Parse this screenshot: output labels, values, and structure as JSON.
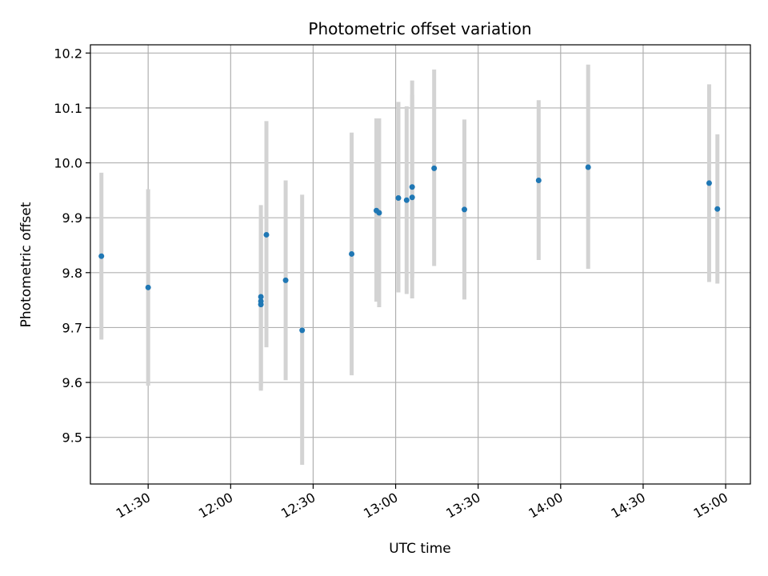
{
  "chart_data": {
    "type": "scatter",
    "title": "Photometric offset variation",
    "xlabel": "UTC time",
    "ylabel": "Photometric offset",
    "x_axis_type": "time",
    "xlim": [
      "11:09",
      "15:09"
    ],
    "ylim": [
      9.415,
      10.215
    ],
    "x_ticks": [
      "11:30",
      "12:00",
      "12:30",
      "13:00",
      "13:30",
      "14:00",
      "14:30",
      "15:00"
    ],
    "y_ticks": [
      9.5,
      9.6,
      9.7,
      9.8,
      9.9,
      10.0,
      10.1,
      10.2
    ],
    "y_tick_labels": [
      "9.5",
      "9.6",
      "9.7",
      "9.8",
      "9.9",
      "10.0",
      "10.1",
      "10.2"
    ],
    "grid": true,
    "errorbar_color": "#d3d3d3",
    "marker_color": "#1f77b4",
    "points": [
      {
        "x": "11:13",
        "y": 9.83,
        "ylow": 9.678,
        "yhigh": 9.982
      },
      {
        "x": "11:30",
        "y": 9.773,
        "ylow": 9.594,
        "yhigh": 9.952
      },
      {
        "x": "12:11",
        "y": 9.756,
        "ylow": 9.585,
        "yhigh": 9.923
      },
      {
        "x": "12:11",
        "y": 9.748,
        "ylow": 9.592,
        "yhigh": 9.9
      },
      {
        "x": "12:11",
        "y": 9.742,
        "ylow": 9.587,
        "yhigh": 9.897
      },
      {
        "x": "12:13",
        "y": 9.869,
        "ylow": 9.664,
        "yhigh": 10.076
      },
      {
        "x": "12:20",
        "y": 9.786,
        "ylow": 9.604,
        "yhigh": 9.968
      },
      {
        "x": "12:26",
        "y": 9.695,
        "ylow": 9.45,
        "yhigh": 9.942
      },
      {
        "x": "12:44",
        "y": 9.834,
        "ylow": 9.613,
        "yhigh": 10.055
      },
      {
        "x": "12:53",
        "y": 9.913,
        "ylow": 9.747,
        "yhigh": 10.081
      },
      {
        "x": "12:54",
        "y": 9.909,
        "ylow": 9.737,
        "yhigh": 10.081
      },
      {
        "x": "13:01",
        "y": 9.936,
        "ylow": 9.764,
        "yhigh": 10.111
      },
      {
        "x": "13:04",
        "y": 9.932,
        "ylow": 9.761,
        "yhigh": 10.103
      },
      {
        "x": "13:06",
        "y": 9.956,
        "ylow": 9.791,
        "yhigh": 10.15
      },
      {
        "x": "13:06",
        "y": 9.937,
        "ylow": 9.753,
        "yhigh": 10.124
      },
      {
        "x": "13:14",
        "y": 9.99,
        "ylow": 9.812,
        "yhigh": 10.17
      },
      {
        "x": "13:25",
        "y": 9.915,
        "ylow": 9.751,
        "yhigh": 10.079
      },
      {
        "x": "13:52",
        "y": 9.968,
        "ylow": 9.823,
        "yhigh": 10.114
      },
      {
        "x": "14:10",
        "y": 9.992,
        "ylow": 9.807,
        "yhigh": 10.179
      },
      {
        "x": "14:54",
        "y": 9.963,
        "ylow": 9.783,
        "yhigh": 10.143
      },
      {
        "x": "14:57",
        "y": 9.916,
        "ylow": 9.78,
        "yhigh": 10.052
      }
    ]
  }
}
